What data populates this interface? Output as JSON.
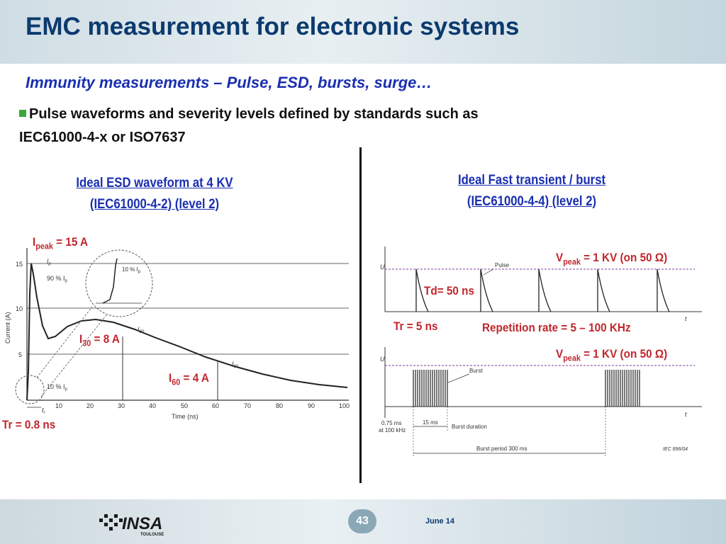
{
  "header": {
    "title": "EMC measurement for electronic systems"
  },
  "subtitle": "Immunity measurements – Pulse, ESD, bursts, surge…",
  "bullet": {
    "line1": "Pulse waveforms and severity levels defined by standards such as",
    "line2": "IEC61000-4-x or ISO7637"
  },
  "left": {
    "caption1": "Ideal ESD waveform at 4 KV",
    "caption2": "(IEC61000-4-2) (level 2)",
    "ipeak_label": "I",
    "ipeak_sub": "peak",
    "ipeak_value": " = 15 A",
    "i30_label": "I",
    "i30_sub": "30",
    "i30_value": " = 8 A",
    "i60_label": "I",
    "i60_sub": "60",
    "i60_value": " = 4 A",
    "tr_label": "Tr = 0.8 ns",
    "graph": {
      "ylabel": "Current   (A)",
      "xlabel": "Time   (ns)",
      "yticks": [
        "15",
        "10",
        "5"
      ],
      "xticks": [
        "10",
        "20",
        "30",
        "40",
        "50",
        "60",
        "70",
        "80",
        "90",
        "100"
      ],
      "ip_label": "I",
      "ip_sub": "p",
      "p90_label": "90 % I",
      "p90_sub": "p",
      "p10_label": "10 % I",
      "p10_sub": "p",
      "zoom_label": "10 % I",
      "zoom_sub": "p",
      "i30_tag": "I",
      "i30_tag_sub": "30",
      "i60_tag": "I",
      "i60_tag_sub": "60",
      "tr_tag": "t",
      "tr_tag_sub": "r"
    }
  },
  "right": {
    "caption1": "Ideal Fast transient / burst",
    "caption2": "(IEC61000-4-4) (level 2)",
    "vpeak1_label": "V",
    "vpeak1_sub": "peak",
    "vpeak1_value": " = 1 KV (on 50 Ω)",
    "td_label": "Td= 50 ns",
    "tr_label": "Tr = 5 ns",
    "rep_label": "Repetition rate = 5 – 100 KHz",
    "vpeak2_label": "V",
    "vpeak2_sub": "peak",
    "vpeak2_value": " = 1 KV (on 50 Ω)",
    "graph": {
      "u1": "U",
      "t1": "t",
      "pulse": "Pulse",
      "u2": "U",
      "t2": "t",
      "burst": "Burst",
      "p075_1": "0,75 ms",
      "p075_2": "at 100 kHz",
      "p15": "15 ms",
      "burst_duration": "Burst duration",
      "burst_period": "Burst period 300 ms",
      "iec_ref": "IEC   896/04"
    }
  },
  "footer": {
    "page": "43",
    "date": "June 14",
    "logo_text": "INSA",
    "logo_sub": "TOULOUSE"
  }
}
